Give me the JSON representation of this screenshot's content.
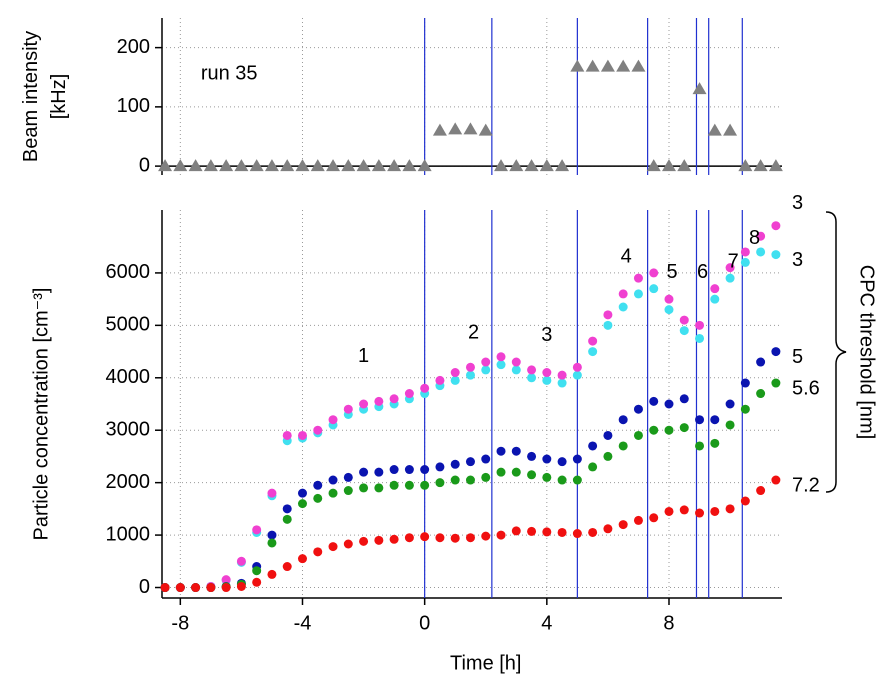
{
  "chart_data": [
    {
      "type": "scatter",
      "marker": "triangle",
      "ylabel": [
        "Beam intensity",
        "[kHz]"
      ],
      "annotation": "run 35",
      "x": [
        -8.5,
        -8,
        -7.5,
        -7,
        -6.5,
        -6,
        -5.5,
        -5,
        -4.5,
        -4,
        -3.5,
        -3,
        -2.5,
        -2,
        -1.5,
        -1,
        -0.5,
        0,
        0.5,
        1,
        1.5,
        2,
        2.5,
        3,
        3.5,
        4,
        4.5,
        5,
        5.5,
        6,
        6.5,
        7,
        7.5,
        8,
        8.5,
        9,
        9.5,
        10,
        10.5,
        11,
        11.5
      ],
      "series": [
        {
          "color": "#808080",
          "values": [
            0,
            0,
            0,
            0,
            0,
            0,
            0,
            0,
            0,
            0,
            0,
            0,
            0,
            0,
            0,
            0,
            0,
            0,
            60,
            62,
            62,
            60,
            0,
            0,
            0,
            0,
            0,
            168,
            168,
            168,
            168,
            168,
            0,
            0,
            0,
            130,
            60,
            60,
            0,
            0,
            0
          ]
        }
      ],
      "xlim": [
        -8.6,
        11.7
      ],
      "ylim": [
        -15,
        250
      ],
      "yticks": [
        0,
        100,
        200
      ],
      "grid": true,
      "vlines": [
        0,
        2.2,
        5,
        7.3,
        8.9,
        9.3,
        10.4
      ]
    },
    {
      "type": "scatter",
      "marker": "circle",
      "xlabel": "Time [h]",
      "ylabel": "Particle concentration [cm⁻³]",
      "right_label": "CPC threshold [nm]",
      "annotations": [
        "1",
        "2",
        "3",
        "4",
        "5",
        "6",
        "7",
        "8"
      ],
      "x": [
        -8.5,
        -8,
        -7.5,
        -7,
        -6.5,
        -6,
        -5.5,
        -5,
        -4.5,
        -4,
        -3.5,
        -3,
        -2.5,
        -2,
        -1.5,
        -1,
        -0.5,
        0,
        0.5,
        1,
        1.5,
        2,
        2.5,
        3,
        3.5,
        4,
        4.5,
        5,
        5.5,
        6,
        6.5,
        7,
        7.5,
        8,
        8.5,
        9,
        9.5,
        10,
        10.5,
        11,
        11.5
      ],
      "series": [
        {
          "name": "3",
          "color": "#40e0f0",
          "values": [
            0,
            0,
            0,
            20,
            140,
            480,
            1050,
            1750,
            2800,
            2850,
            2950,
            3100,
            3300,
            3400,
            3450,
            3500,
            3600,
            3700,
            3850,
            3950,
            4050,
            4150,
            4250,
            4150,
            4000,
            3950,
            3900,
            4050,
            4500,
            5000,
            5350,
            5600,
            5700,
            5300,
            4900,
            4750,
            5500,
            5900,
            6200,
            6400,
            6350
          ]
        },
        {
          "name": "3",
          "color": "#f040d0",
          "values": [
            0,
            0,
            0,
            20,
            150,
            500,
            1100,
            1800,
            2900,
            2900,
            3000,
            3200,
            3400,
            3500,
            3550,
            3600,
            3700,
            3800,
            3950,
            4100,
            4200,
            4300,
            4400,
            4300,
            4150,
            4100,
            4050,
            4200,
            4700,
            5200,
            5600,
            5900,
            6000,
            5500,
            5100,
            5000,
            5700,
            6100,
            6400,
            6700,
            6900
          ]
        },
        {
          "name": "5",
          "color": "#0a14b0",
          "values": [
            0,
            0,
            0,
            0,
            20,
            80,
            400,
            1000,
            1500,
            1800,
            1950,
            2050,
            2100,
            2200,
            2200,
            2250,
            2250,
            2250,
            2300,
            2350,
            2400,
            2450,
            2600,
            2600,
            2500,
            2450,
            2400,
            2450,
            2700,
            2900,
            3200,
            3400,
            3550,
            3500,
            3600,
            3200,
            3200,
            3500,
            3900,
            4300,
            4500
          ]
        },
        {
          "name": "5.6",
          "color": "#1a9a1a",
          "values": [
            0,
            0,
            0,
            0,
            15,
            60,
            320,
            850,
            1300,
            1600,
            1700,
            1800,
            1850,
            1900,
            1900,
            1950,
            1950,
            1950,
            2000,
            2050,
            2050,
            2100,
            2200,
            2200,
            2150,
            2100,
            2050,
            2050,
            2300,
            2500,
            2700,
            2900,
            3000,
            3000,
            3050,
            2700,
            2750,
            3100,
            3400,
            3700,
            3900
          ]
        },
        {
          "name": "7.2",
          "color": "#f01010",
          "values": [
            0,
            0,
            0,
            0,
            0,
            20,
            100,
            250,
            400,
            550,
            680,
            780,
            830,
            880,
            900,
            920,
            950,
            970,
            950,
            940,
            950,
            980,
            1000,
            1080,
            1070,
            1060,
            1050,
            1030,
            1050,
            1120,
            1200,
            1280,
            1330,
            1450,
            1480,
            1420,
            1450,
            1500,
            1650,
            1850,
            2050
          ]
        }
      ],
      "xlim": [
        -8.6,
        11.7
      ],
      "ylim": [
        -200,
        7200
      ],
      "xticks": [
        -8,
        -4,
        0,
        4,
        8
      ],
      "yticks": [
        0,
        1000,
        2000,
        3000,
        4000,
        5000,
        6000
      ],
      "grid": true,
      "vlines": [
        0,
        2.2,
        5,
        7.3,
        8.9,
        9.3,
        10.4
      ]
    }
  ]
}
